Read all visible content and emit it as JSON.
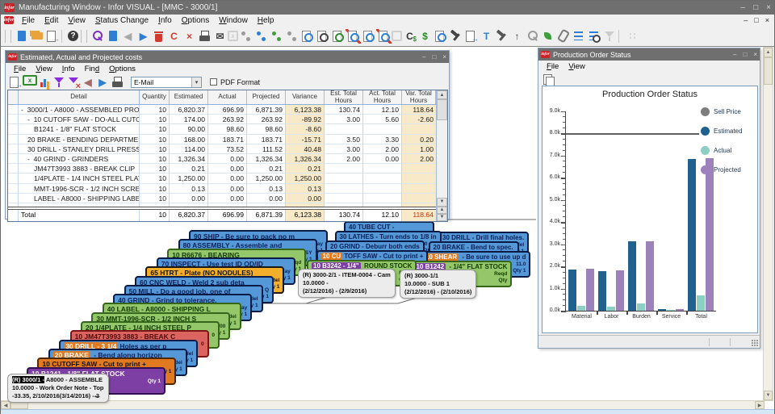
{
  "app": {
    "title": "Manufacturing Window - Infor VISUAL - [MMC - 3000/1]",
    "logo": "infor"
  },
  "icons": {
    "minimize": "–",
    "maximize": "□",
    "close": "×",
    "restore": "□",
    "dropdown": "▾",
    "up": "▲",
    "down": "▼",
    "left": "◀",
    "right": "▶",
    "back_arrow": "←",
    "help": "?"
  },
  "menubar": {
    "items": [
      "_File",
      "_Edit",
      "_View",
      "_Status Change",
      "_Info",
      "_Options",
      "_Window",
      "_Help"
    ]
  },
  "toolbar": {
    "items": [
      {
        "k": "sep2"
      },
      {
        "n": "new-icon",
        "k": "doc",
        "c": "#2f7fd4"
      },
      {
        "n": "open-folder-icon",
        "k": "folder",
        "c": "#e8a33d"
      },
      {
        "n": "exit-icon",
        "k": "docout",
        "c": "#888888"
      },
      {
        "k": "sep"
      },
      {
        "n": "help-icon",
        "k": "helpc",
        "c": "#3a3a3a",
        "ch": "?"
      },
      {
        "k": "sep2"
      },
      {
        "n": "search-icon",
        "k": "mag",
        "c": "#7b2fbe"
      },
      {
        "n": "document-id-icon",
        "k": "doc",
        "c": "#2f7fd4"
      },
      {
        "n": "prev-icon",
        "k": "glyph",
        "ch": "◀",
        "c": "#a9a9a9"
      },
      {
        "n": "next-icon",
        "k": "glyph",
        "ch": "▶",
        "c": "#2f7fd4"
      },
      {
        "n": "delete-icon",
        "k": "trash",
        "c": "#d23b2f"
      },
      {
        "n": "revert-icon",
        "k": "glyph",
        "ch": "C",
        "c": "#d23b2f"
      },
      {
        "n": "close-record-icon",
        "k": "glyph",
        "ch": "×",
        "c": "#d23b2f"
      },
      {
        "n": "print-icon",
        "k": "print",
        "c": "#555555"
      },
      {
        "n": "email-icon",
        "k": "glyph",
        "ch": "✉",
        "c": "#4a4a4a"
      },
      {
        "n": "excel-icon",
        "k": "excel",
        "c": "#b5b5b5",
        "ch": "x",
        "dis": 1
      },
      {
        "n": "link-icon-1",
        "k": "share",
        "c": "#9a9a9a"
      },
      {
        "n": "link-icon-2",
        "k": "share",
        "c": "#2f7fd4"
      },
      {
        "n": "link-icon-3",
        "k": "share",
        "c": "#3fa03f"
      },
      {
        "n": "link-icon-4",
        "k": "share",
        "c": "#9a9a9a"
      },
      {
        "n": "doc-search-icon-1",
        "k": "docmag",
        "c": "#2f7fd4"
      },
      {
        "n": "doc-search-icon-2",
        "k": "docmag",
        "c": "#444444"
      },
      {
        "n": "doc-search-icon-3",
        "k": "docmag",
        "c": "#2f7fd4",
        "v": "plus"
      },
      {
        "n": "doc-search-icon-4",
        "k": "docmag",
        "c": "#2f7fd4",
        "v": "slash"
      },
      {
        "n": "doc-search-icon-5",
        "k": "docmag",
        "c": "#2f7fd4"
      },
      {
        "n": "doc-search-icon-6",
        "k": "docmag",
        "c": "#2f7fd4",
        "v": "slash"
      },
      {
        "n": "calculator-icon",
        "k": "excel",
        "c": "#b5b5b5",
        "ch": "",
        "dis": 1
      },
      {
        "n": "currency-icon",
        "k": "cdollar",
        "c": "#333333",
        "ch": "C"
      },
      {
        "n": "dollar-icon",
        "k": "glyph",
        "ch": "$",
        "c": "#2e8b2e"
      },
      {
        "n": "preview-icon",
        "k": "docmag",
        "c": "#2f7fd4"
      },
      {
        "n": "hammer-icon",
        "k": "hammer",
        "c": "#444444"
      },
      {
        "n": "doc-export-icon",
        "k": "docout",
        "c": "#2f7fd4"
      },
      {
        "n": "tee-filter-icon",
        "k": "glyph",
        "ch": "T",
        "c": "#2f7fd4"
      },
      {
        "n": "hammer-up-icon",
        "k": "hammer",
        "c": "#555555"
      },
      {
        "n": "arrow-up-icon",
        "k": "glyph",
        "ch": "↑",
        "c": "#444444"
      },
      {
        "n": "tag-icon",
        "k": "mag",
        "c": "#9a9a9a"
      },
      {
        "n": "leaf-icon",
        "k": "leaf",
        "c": "#3fa03f"
      },
      {
        "n": "paperclip-icon",
        "k": "clip",
        "c": "#7a7a7a"
      },
      {
        "n": "checklist-icon",
        "k": "list",
        "c": "#2f7fd4"
      },
      {
        "n": "list-search-icon",
        "k": "list",
        "c": "#2f7fd4",
        "v": "mag"
      },
      {
        "n": "fil ter-icon-disabled",
        "k": "funnel",
        "c": "#b0b0b0",
        "dis": 1
      },
      {
        "k": "sep"
      },
      {
        "n": "window-grid-icon",
        "k": "glyph",
        "ch": "∷",
        "c": "#b5b5b5",
        "dis": 1
      }
    ]
  },
  "costs_window": {
    "title": "Estimated, Actual and Projected costs",
    "menus": [
      "_File",
      "_View",
      "_Info",
      "Fin_d",
      "_Options"
    ],
    "toolbar": {
      "items": [
        {
          "n": "exit-icon",
          "k": "docout",
          "c": "#2f7fd4"
        },
        {
          "n": "excel-icon",
          "k": "excel",
          "c": "#2e8b2e",
          "ch": "x"
        },
        {
          "n": "chart-icon",
          "k": "bars"
        },
        {
          "n": "filter-icon",
          "k": "funnel",
          "c": "#8a2be2"
        },
        {
          "n": "filter-clear-icon",
          "k": "funnel",
          "c": "#8a2be2",
          "v": "x"
        },
        {
          "n": "prev-icon",
          "k": "glyph",
          "ch": "◀",
          "c": "#a56a6a"
        },
        {
          "n": "next-icon",
          "k": "glyph",
          "ch": "▶",
          "c": "#2f7fd4"
        },
        {
          "n": "print-icon",
          "k": "print",
          "c": "#555555"
        }
      ],
      "email_value": "E-Mail",
      "pdf_label": "PDF Format",
      "pdf_checked": false
    },
    "grid": {
      "headers": [
        "",
        "Detail",
        "Quantity",
        "Estimated",
        "Actual",
        "Projected",
        "Variance",
        "Est. Total Hours",
        "Act. Total Hours",
        "Var. Total Hours"
      ],
      "rows": [
        {
          "expand": "-",
          "indent": 0,
          "detail": "3000/1 - A8000 - ASSEMBLED PRODUCT",
          "qty": "10",
          "est": "6,820.37",
          "act": "696.99",
          "proj": "6,871.39",
          "var": "6,123.38",
          "esth": "130.74",
          "acth": "12.10",
          "varh": "118.64",
          "red": [
            "varh"
          ]
        },
        {
          "expand": "-",
          "indent": 1,
          "detail": "10 CUTOFF SAW - DO-ALL CUTOFF SAW",
          "qty": "10",
          "est": "174.00",
          "act": "263.92",
          "proj": "263.92",
          "var": "-89.92",
          "esth": "3.00",
          "acth": "5.60",
          "varh": "-2.60",
          "red": [
            "var",
            "varh"
          ]
        },
        {
          "indent": 2,
          "detail": "B1241 - 1/8\" FLAT STOCK",
          "qty": "10",
          "est": "90.00",
          "act": "98.60",
          "proj": "98.60",
          "var": "-8.60",
          "esth": "",
          "acth": "",
          "varh": "",
          "red": [
            "var"
          ]
        },
        {
          "indent": 1,
          "detail": "20 BRAKE - BENDING DEPARTMENT",
          "qty": "10",
          "est": "168.00",
          "act": "183.71",
          "proj": "183.71",
          "var": "-15.71",
          "esth": "3.50",
          "acth": "3.30",
          "varh": "0.20",
          "red": [
            "var"
          ]
        },
        {
          "indent": 1,
          "detail": "30 DRILL - STANLEY DRILL PRESS",
          "qty": "10",
          "est": "114.00",
          "act": "73.52",
          "proj": "111.52",
          "var": "40.48",
          "esth": "3.00",
          "acth": "2.00",
          "varh": "1.00",
          "red": []
        },
        {
          "expand": "-",
          "indent": 1,
          "detail": "40 GRIND - GRINDERS",
          "qty": "10",
          "est": "1,326.34",
          "act": "0.00",
          "proj": "1,326.34",
          "var": "1,326.34",
          "esth": "2.00",
          "acth": "0.00",
          "varh": "2.00",
          "red": []
        },
        {
          "indent": 2,
          "detail": "JM47T3993 3883 - BREAK CLIP",
          "qty": "10",
          "est": "0.21",
          "act": "0.00",
          "proj": "0.21",
          "var": "0.21",
          "esth": "",
          "acth": "",
          "varh": "",
          "red": []
        },
        {
          "indent": 2,
          "detail": "1/4PLATE - 1/4 INCH STEEL PLATE",
          "qty": "10",
          "est": "1,250.00",
          "act": "0.00",
          "proj": "1,250.00",
          "var": "1,250.00",
          "esth": "",
          "acth": "",
          "varh": "",
          "red": []
        },
        {
          "indent": 2,
          "detail": "MMT-1996-SCR - 1/2 INCH SCREWS",
          "qty": "10",
          "est": "0.13",
          "act": "0.00",
          "proj": "0.13",
          "var": "0.13",
          "esth": "",
          "acth": "",
          "varh": "",
          "red": []
        },
        {
          "indent": 2,
          "detail": "LABEL - A8000 - SHIPPING LABEL",
          "qty": "10",
          "est": "0.00",
          "act": "0.00",
          "proj": "0.00",
          "var": "0.00",
          "esth": "",
          "acth": "",
          "varh": "",
          "red": []
        }
      ],
      "total": {
        "label": "Total",
        "qty": "10",
        "est": "6,820.37",
        "act": "696.99",
        "proj": "6,871.39",
        "var": "6,123.38",
        "esth": "130.74",
        "acth": "12.10",
        "varh": "118.64",
        "red": [
          "varh"
        ]
      }
    }
  },
  "chart_window": {
    "title": "Production Order Status",
    "menus": [
      "_File",
      "_View"
    ],
    "toolbar": {
      "items": [
        {
          "n": "copy-icon",
          "k": "copy",
          "c": "#9a9a9a"
        }
      ]
    },
    "chart_data": {
      "type": "bar",
      "title": "Production Order Status",
      "categories": [
        "Material",
        "Labor",
        "Burden",
        "Service",
        "Total"
      ],
      "series": [
        {
          "name": "Estimated",
          "color": "#20618f",
          "values": [
            1.87,
            1.78,
            3.12,
            0.06,
            6.82
          ]
        },
        {
          "name": "Actual",
          "color": "#8ecfc3",
          "values": [
            0.22,
            0.18,
            0.31,
            0.01,
            0.7
          ]
        },
        {
          "name": "Projected",
          "color": "#9d81ba",
          "values": [
            1.89,
            1.81,
            3.12,
            0.06,
            6.87
          ]
        }
      ],
      "reference_line": {
        "name": "Sell Price",
        "value": 8.0,
        "color": "#5f5f5f"
      },
      "legend": [
        {
          "label": "Sell Price",
          "color": "#7d7d7d"
        },
        {
          "label": "Estimated",
          "color": "#20618f"
        },
        {
          "label": "Actual",
          "color": "#8ecfc3"
        },
        {
          "label": "Projected",
          "color": "#9d81ba"
        }
      ],
      "ylim": [
        0,
        9
      ],
      "ytick_step": 1,
      "ytick_unit": "k",
      "grid": false,
      "legend_position": "right"
    }
  },
  "cards": {
    "left_stack": {
      "cards": [
        {
          "style": "blue",
          "title": "90 SHIP -  Be sure to pack no m",
          "peek": [
            "1 day",
            "Qty 1"
          ]
        },
        {
          "style": "blue",
          "title": "80 ASSEMBLY -  Assemble and",
          "peek": [
            "ASSY",
            "Qty 1"
          ]
        },
        {
          "style": "green",
          "title": "10 R6676 - BEARING",
          "peek": [
            "Reqd",
            "Qty 1"
          ]
        },
        {
          "style": "blue",
          "title": "70 INSPECT -  Use test ID OD/ID",
          "peek": [
            "1 day",
            "Qty 1"
          ]
        },
        {
          "style": "amber",
          "title": "65 HTRT -  Plate (NO NODULES)",
          "peek": [
            "0 del",
            "Qty 1"
          ]
        },
        {
          "style": "blue",
          "title": "60 CNC WELD -  Weld 2 sub deta",
          "peek": [
            "L, Q",
            "Qty 1"
          ]
        },
        {
          "style": "blue",
          "title": "50 MILL -  Do a good job, one of",
          "peek": [
            "0 del",
            "Qty 1"
          ]
        },
        {
          "style": "blue",
          "title": "40 GRIND -  Grind to tolerance.",
          "peek": [
            "delay",
            "Qty 1"
          ]
        },
        {
          "style": "green",
          "title": "40 LABEL - A8000 - SHIPPING L",
          "peek": [
            "0 del",
            "Qty 1"
          ]
        },
        {
          "style": "green",
          "title": "30 MMT-1996-SCR - 1/2 INCH S",
          "peek": [
            "000",
            "Qty 1"
          ]
        },
        {
          "style": "green",
          "title": "20 1/4PLATE - 1/4 INCH STEEL P",
          "peek": [
            "0",
            ""
          ]
        },
        {
          "style": "red",
          "title": "10 JM47T3993 3883 - BREAK C",
          "peek": [
            "0",
            ""
          ]
        },
        {
          "style": "blue",
          "tag": "30 DRILL -  3 1/4",
          "tagStyle": "orange",
          "title": "Holes as per p",
          "peek": [
            "p del",
            "Qty 1"
          ]
        },
        {
          "style": "blue",
          "tag": "20 BRAKE",
          "tagStyle": "orange",
          "title": " -  Bend along horizon",
          "peek": [
            "0 del",
            "Qty 1"
          ]
        },
        {
          "style": "orange",
          "title": "10 CUTOFF SAW -  Cut to print +",
          "peek": [
            "Qty 1",
            ""
          ]
        },
        {
          "style": "purple",
          "title": "10 B1241 - 1/8\" FLAT STOCK",
          "peek": [
            "Qty 1",
            ""
          ]
        }
      ],
      "note": {
        "lines": [
          "(R) 3000/1 - A8000 - ASSEMBLE",
          "10.0000 - Work Order Note - Top",
          "-33.35, 2/10/2016(3/14/2016) - 3"
        ],
        "hl": "(R) 3000/1 -"
      }
    },
    "middle_stack": {
      "cards": [
        {
          "style": "blue",
          "title": "40 TUBE CUT -",
          "peek": [
            "0 del",
            "Qty 1"
          ]
        },
        {
          "style": "blue",
          "title": "30 LATHES -  Turn ends to 1/8 in",
          "peek": [
            "0 del",
            "Qty 1"
          ]
        },
        {
          "style": "blue",
          "title": "20 GRIND -  Deburr both ends",
          "peek": [
            "0 del",
            "Qty 1"
          ]
        },
        {
          "style": "blue",
          "tag": "10 CU",
          "tagStyle": "orange",
          "title": "TOFF SAW -  Cut to print +",
          "peek": [
            "9 day",
            "Qty 1"
          ]
        },
        {
          "style": "green",
          "tag": "10 B3242 - 1/4\"",
          "tagStyle": "purple",
          "title": " ROUND STOCK",
          "peek": [
            "Reqd",
            "Qty 1"
          ]
        }
      ],
      "note": {
        "lines": [
          "(R) 3000-2/1 - ITEM-0004 - Cam",
          "10.0000 -",
          "(2/12/2016) - (2/9/2016)"
        ]
      }
    },
    "right_stack": {
      "cards": [
        {
          "style": "blue",
          "title": "30 DRILL -  Drill final holes.",
          "peek": [
            "0 del",
            "Qty 1"
          ]
        },
        {
          "style": "blue",
          "title": "20 BRAKE -  Bend to spec.",
          "peek": [
            "0 del",
            "Qty 1"
          ]
        },
        {
          "style": "blue",
          "tag": "10 SHEAR",
          "tagStyle": "orange",
          "title": " -  Be sure to use up d",
          "peek": [
            "11.0",
            "Qty 1"
          ]
        },
        {
          "style": "green",
          "tag": "10 B1242",
          "tagStyle": "purple",
          "title": " - 1/4\" FLAT STOCK",
          "peek": [
            "Reqd",
            "Qty"
          ]
        }
      ],
      "note": {
        "lines": [
          "(R) 3000-1/1",
          "10.0000 -  SUB 1",
          "(2/12/2016) - (2/10/2016)"
        ]
      }
    }
  }
}
